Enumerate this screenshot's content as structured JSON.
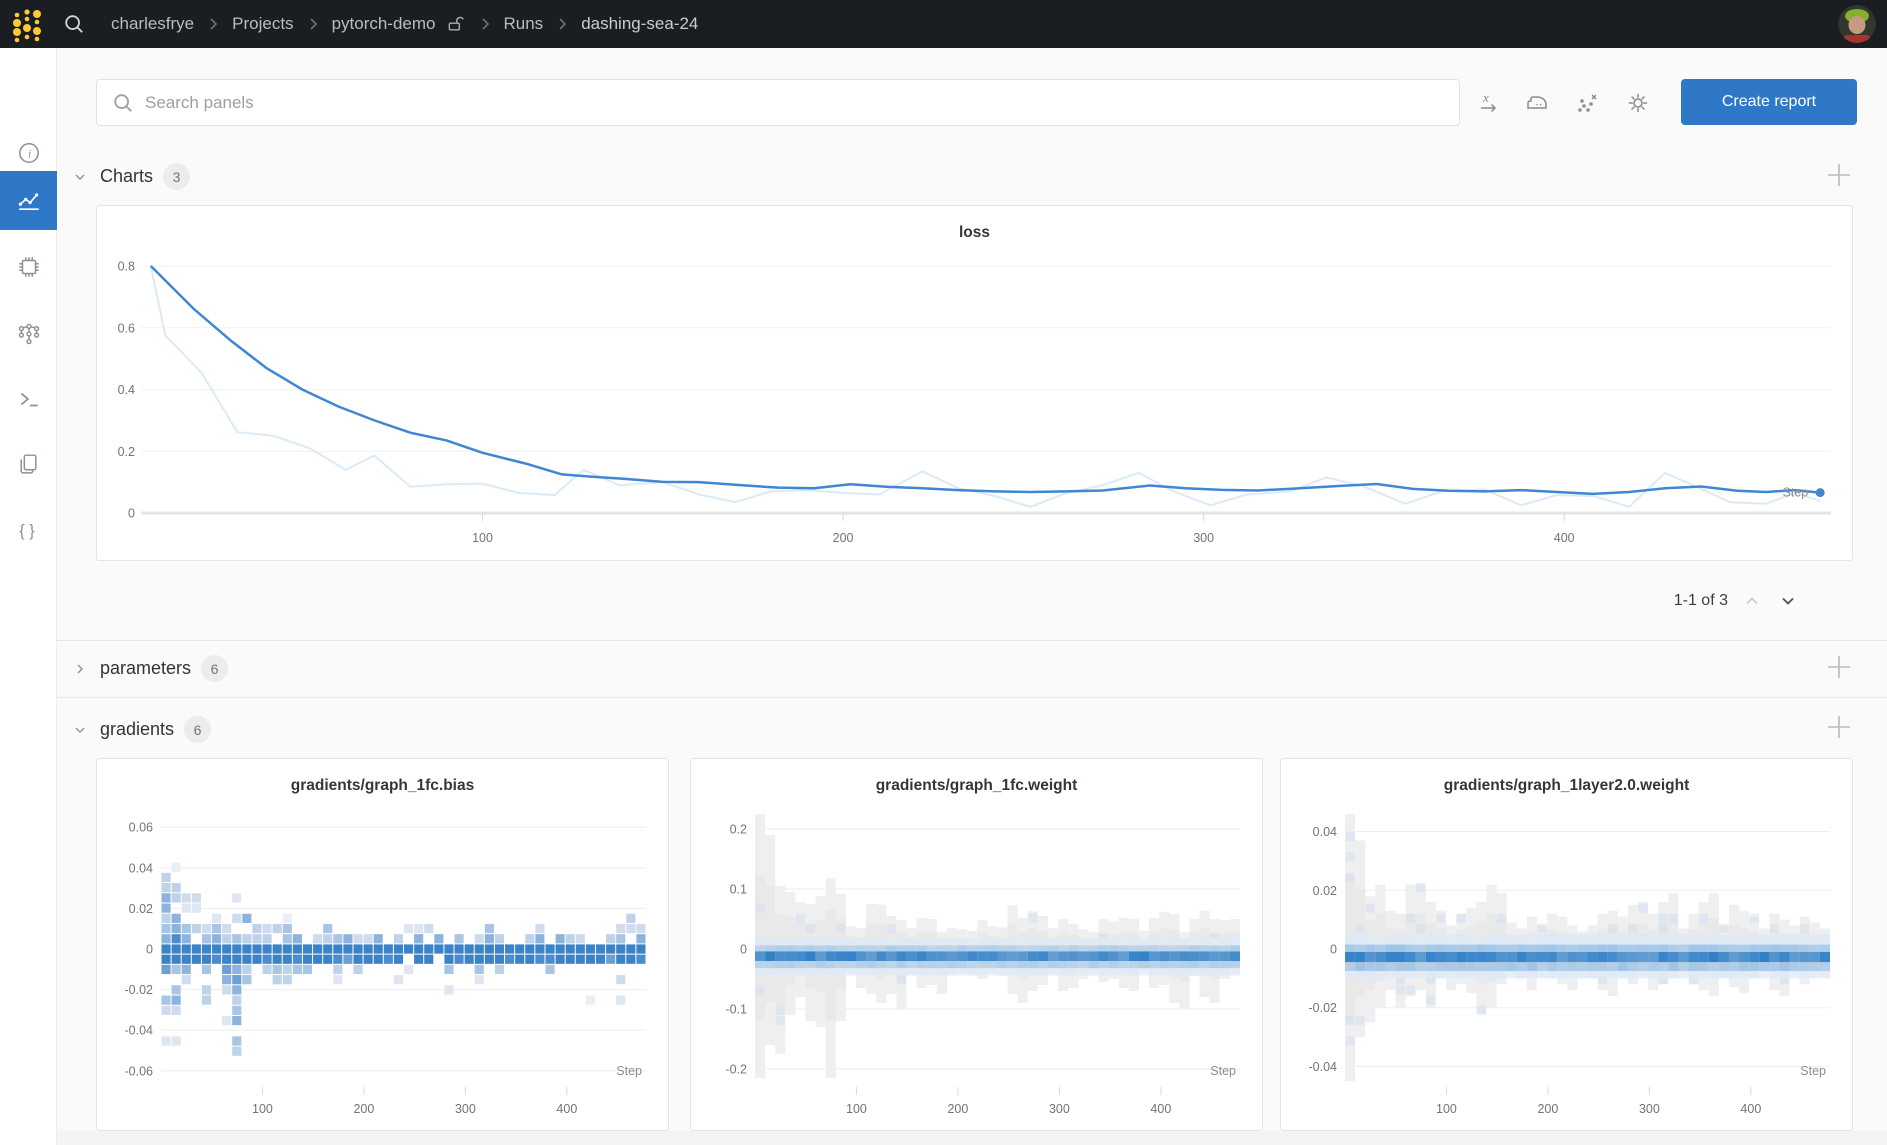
{
  "topbar": {
    "breadcrumb": [
      "charlesfrye",
      "Projects",
      "pytorch-demo",
      "Runs",
      "dashing-sea-24"
    ]
  },
  "search": {
    "placeholder": "Search panels"
  },
  "toolbar": {
    "icons": [
      "x-axis-settings",
      "smoothing-iron",
      "remove-outliers",
      "panel-settings"
    ],
    "create_report": "Create report"
  },
  "sidebar": {
    "items": [
      {
        "name": "overview",
        "icon": "info-icon"
      },
      {
        "name": "charts",
        "icon": "line-chart-icon",
        "selected": true
      },
      {
        "name": "system",
        "icon": "chip-icon"
      },
      {
        "name": "model",
        "icon": "model-graph-icon"
      },
      {
        "name": "logs",
        "icon": "terminal-icon"
      },
      {
        "name": "files",
        "icon": "files-icon"
      },
      {
        "name": "config",
        "icon": "braces-icon"
      }
    ]
  },
  "sections": {
    "charts": {
      "label": "Charts",
      "count": "3"
    },
    "parameters": {
      "label": "parameters",
      "count": "6"
    },
    "gradients": {
      "label": "gradients",
      "count": "6"
    }
  },
  "pagination": {
    "label": "1-1 of 3"
  },
  "colors": {
    "accent_blue": "#2e78c7",
    "line_blue": "#3f87d2",
    "line_raw": "#dceaf8",
    "heat_strong": "#2f80c8",
    "topbar_bg": "#1a1d21",
    "logo_yellow": "#ffc933"
  },
  "chart_data": [
    {
      "type": "line",
      "title": "loss",
      "xlabel": "Step",
      "xlim": [
        0,
        474
      ],
      "ylim": [
        0,
        0.8
      ],
      "yticks": [
        0.8,
        0.6,
        0.4,
        0.2,
        0
      ],
      "xticks": [
        100,
        200,
        300,
        400
      ],
      "grid": true,
      "series": [
        {
          "name": "loss-raw",
          "color": "#dceaf8",
          "x": [
            8,
            12,
            22,
            32,
            42,
            52,
            62,
            70,
            80,
            90,
            100,
            110,
            120,
            128,
            138,
            150,
            160,
            170,
            180,
            190,
            200,
            210,
            222,
            232,
            242,
            252,
            262,
            272,
            282,
            292,
            302,
            312,
            324,
            334,
            344,
            356,
            366,
            378,
            388,
            398,
            408,
            418,
            428,
            438,
            446,
            456,
            464,
            471
          ],
          "y": [
            0.8,
            0.575,
            0.455,
            0.262,
            0.25,
            0.21,
            0.14,
            0.186,
            0.085,
            0.093,
            0.095,
            0.065,
            0.058,
            0.14,
            0.09,
            0.1,
            0.06,
            0.035,
            0.07,
            0.074,
            0.065,
            0.06,
            0.135,
            0.08,
            0.055,
            0.02,
            0.065,
            0.09,
            0.13,
            0.068,
            0.025,
            0.06,
            0.07,
            0.115,
            0.088,
            0.03,
            0.07,
            0.076,
            0.025,
            0.058,
            0.055,
            0.02,
            0.13,
            0.078,
            0.035,
            0.03,
            0.065,
            0.04
          ]
        },
        {
          "name": "loss-smoothed",
          "color": "#3f87d2",
          "x": [
            8,
            14,
            20,
            30,
            40,
            50,
            60,
            70,
            80,
            90,
            100,
            112,
            122,
            130,
            140,
            150,
            160,
            172,
            182,
            192,
            202,
            212,
            222,
            232,
            242,
            252,
            262,
            272,
            285,
            295,
            305,
            315,
            325,
            338,
            348,
            358,
            368,
            378,
            388,
            398,
            408,
            418,
            428,
            438,
            448,
            456,
            464,
            471
          ],
          "y": [
            0.8,
            0.73,
            0.66,
            0.56,
            0.47,
            0.4,
            0.345,
            0.3,
            0.26,
            0.235,
            0.195,
            0.16,
            0.125,
            0.118,
            0.11,
            0.101,
            0.1,
            0.09,
            0.082,
            0.08,
            0.093,
            0.085,
            0.08,
            0.074,
            0.07,
            0.068,
            0.07,
            0.073,
            0.089,
            0.08,
            0.075,
            0.073,
            0.079,
            0.088,
            0.094,
            0.078,
            0.072,
            0.07,
            0.074,
            0.068,
            0.062,
            0.068,
            0.08,
            0.086,
            0.072,
            0.068,
            0.074,
            0.066
          ]
        }
      ]
    },
    {
      "type": "heatmap",
      "style": "scatter",
      "seed": 11,
      "title": "gradients/graph_1fc.bias",
      "xlabel": "Step",
      "xlim": [
        0,
        478
      ],
      "ymax": 0.068,
      "yticks": [
        0.06,
        0.04,
        0.02,
        0,
        -0.02,
        -0.04,
        -0.06
      ],
      "xticks": [
        100,
        200,
        300,
        400
      ],
      "bins": 48,
      "envelope_top": [
        0.065,
        0.048,
        0.031,
        0.027,
        0.02,
        0.016,
        0.022,
        0.028,
        0.024,
        0.014,
        0.012,
        0.02,
        0.018,
        0.016,
        0.012,
        0.014,
        0.016,
        0.012,
        0.016,
        0.01,
        0.012,
        0.011,
        0.012,
        0.01,
        0.012,
        0.011,
        0.01,
        0.012,
        0.011,
        0.01,
        0.011,
        0.009,
        0.012,
        0.01,
        0.011,
        0.01,
        0.009,
        0.011,
        0.01,
        0.012,
        0.009,
        0.01,
        0.008,
        0.011,
        0.01,
        0.012,
        0.015,
        0.011
      ],
      "envelope_bottom": [
        0.053,
        0.047,
        0.032,
        0.016,
        0.031,
        0.012,
        0.035,
        0.065,
        0.028,
        0.012,
        0.016,
        0.018,
        0.021,
        0.014,
        0.028,
        0.012,
        0.016,
        0.019,
        0.014,
        0.012,
        0.011,
        0.016,
        0.012,
        0.014,
        0.011,
        0.012,
        0.021,
        0.011,
        0.02,
        0.012,
        0.011,
        0.016,
        0.01,
        0.012,
        0.011,
        0.01,
        0.012,
        0.011,
        0.013,
        0.01,
        0.011,
        0.012,
        0.028,
        0.01,
        0.011,
        0.024,
        0.012,
        0.01
      ],
      "band_center": -0.002,
      "band_half_width": 0.005
    },
    {
      "type": "heatmap",
      "style": "column",
      "seed": 23,
      "speckle": 0.06,
      "title": "gradients/graph_1fc.weight",
      "xlabel": "Step",
      "xlim": [
        0,
        478
      ],
      "ymax": 0.23,
      "yticks": [
        0.2,
        0.1,
        0,
        -0.1,
        -0.2
      ],
      "xticks": [
        100,
        200,
        300,
        400
      ],
      "bins": 48,
      "envelope_top": [
        0.225,
        0.19,
        0.105,
        0.095,
        0.078,
        0.075,
        0.088,
        0.118,
        0.092,
        0.038,
        0.035,
        0.075,
        0.074,
        0.055,
        0.048,
        0.035,
        0.052,
        0.05,
        0.028,
        0.035,
        0.033,
        0.03,
        0.048,
        0.038,
        0.036,
        0.073,
        0.052,
        0.063,
        0.055,
        0.035,
        0.05,
        0.042,
        0.033,
        0.028,
        0.05,
        0.046,
        0.052,
        0.05,
        0.03,
        0.052,
        0.062,
        0.058,
        0.028,
        0.05,
        0.064,
        0.05,
        0.048,
        0.05
      ],
      "envelope_bottom": [
        0.215,
        0.16,
        0.175,
        0.11,
        0.08,
        0.12,
        0.13,
        0.215,
        0.12,
        0.04,
        0.065,
        0.075,
        0.09,
        0.075,
        0.1,
        0.04,
        0.065,
        0.06,
        0.075,
        0.035,
        0.04,
        0.035,
        0.05,
        0.04,
        0.045,
        0.075,
        0.09,
        0.07,
        0.06,
        0.04,
        0.07,
        0.065,
        0.05,
        0.035,
        0.055,
        0.05,
        0.065,
        0.07,
        0.035,
        0.065,
        0.06,
        0.09,
        0.1,
        0.045,
        0.08,
        0.09,
        0.05,
        0.04
      ],
      "band": [
        {
          "from": 0.018,
          "to": 0.006,
          "color": "#dfeaf6"
        },
        {
          "from": 0.006,
          "to": -0.004,
          "color": "#aecde9"
        },
        {
          "from": -0.004,
          "to": -0.02,
          "color": "#2f80c8"
        },
        {
          "from": -0.02,
          "to": -0.032,
          "color": "#aecde9"
        },
        {
          "from": -0.032,
          "to": -0.044,
          "color": "#dfeaf6"
        }
      ]
    },
    {
      "type": "heatmap",
      "style": "column",
      "seed": 37,
      "speckle": 0.2,
      "title": "gradients/graph_1layer2.0.weight",
      "xlabel": "Step",
      "xlim": [
        0,
        478
      ],
      "ymax": 0.047,
      "yticks": [
        0.04,
        0.02,
        0,
        -0.02,
        -0.04
      ],
      "xticks": [
        100,
        200,
        300,
        400
      ],
      "bins": 48,
      "envelope_top": [
        0.046,
        0.037,
        0.018,
        0.022,
        0.013,
        0.012,
        0.022,
        0.022,
        0.016,
        0.013,
        0.008,
        0.012,
        0.014,
        0.016,
        0.022,
        0.019,
        0.009,
        0.007,
        0.011,
        0.008,
        0.012,
        0.011,
        0.008,
        0.006,
        0.008,
        0.012,
        0.013,
        0.011,
        0.015,
        0.016,
        0.012,
        0.016,
        0.019,
        0.007,
        0.012,
        0.016,
        0.019,
        0.008,
        0.015,
        0.013,
        0.011,
        0.007,
        0.012,
        0.01,
        0.008,
        0.011,
        0.009,
        0.007
      ],
      "envelope_bottom": [
        0.045,
        0.03,
        0.025,
        0.02,
        0.014,
        0.02,
        0.016,
        0.014,
        0.02,
        0.01,
        0.014,
        0.012,
        0.015,
        0.022,
        0.02,
        0.012,
        0.008,
        0.01,
        0.014,
        0.007,
        0.01,
        0.012,
        0.014,
        0.008,
        0.009,
        0.014,
        0.016,
        0.01,
        0.012,
        0.009,
        0.014,
        0.012,
        0.01,
        0.008,
        0.012,
        0.014,
        0.016,
        0.009,
        0.013,
        0.015,
        0.01,
        0.008,
        0.014,
        0.016,
        0.009,
        0.012,
        0.008,
        0.006
      ],
      "band": [
        {
          "from": 0.005,
          "to": 0.0015,
          "color": "#dfeaf6"
        },
        {
          "from": 0.0015,
          "to": -0.001,
          "color": "#9fc4e7"
        },
        {
          "from": -0.001,
          "to": -0.0045,
          "color": "#2f80c8"
        },
        {
          "from": -0.0045,
          "to": -0.0075,
          "color": "#9fc4e7"
        },
        {
          "from": -0.0075,
          "to": -0.01,
          "color": "#dfeaf6"
        }
      ]
    }
  ]
}
